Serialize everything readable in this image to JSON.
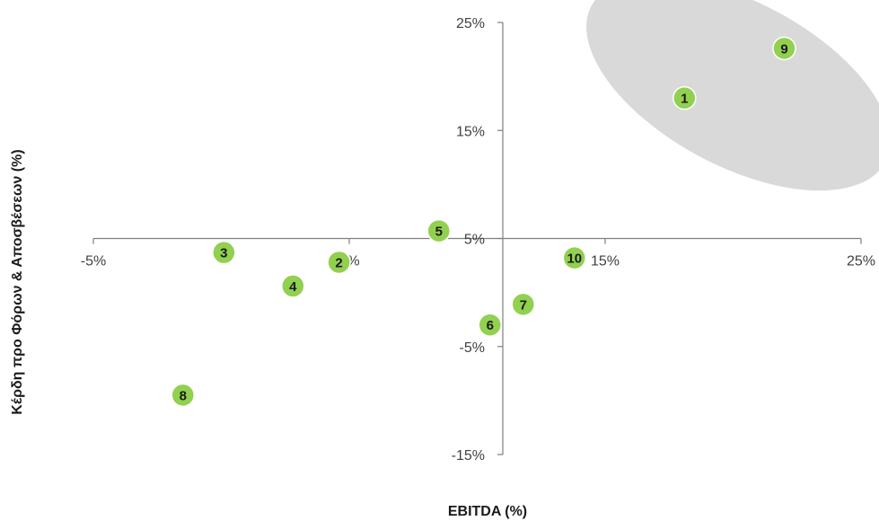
{
  "chart_data": {
    "type": "scatter",
    "title": "",
    "xlabel": "EBITDA (%)",
    "ylabel": "Κέρδη προ Φόρων & Αποσβέσεων (%)",
    "xlim": [
      -5,
      25
    ],
    "ylim": [
      -15,
      25
    ],
    "x_ticks": [
      -5,
      5,
      15,
      25
    ],
    "x_tick_labels": [
      "-5%",
      "5%",
      "15%",
      "25%"
    ],
    "y_ticks": [
      25,
      15,
      5,
      -5,
      -15
    ],
    "y_tick_labels": [
      "25%",
      "15%",
      "5%",
      "-5%",
      "-15%"
    ],
    "axes_cross_at": {
      "x": 11,
      "y": 5
    },
    "grid": false,
    "legend": "none",
    "colors": {
      "point_fill": "#92d050",
      "point_stroke": "#ffffff",
      "axis": "#7f7f7f",
      "highlight_fill": "#d9d9d9"
    },
    "points": [
      {
        "label": "1",
        "x": 18.1,
        "y": 18.0
      },
      {
        "label": "2",
        "x": 4.6,
        "y": 2.8
      },
      {
        "label": "3",
        "x": 0.1,
        "y": 3.7
      },
      {
        "label": "4",
        "x": 2.8,
        "y": 0.6
      },
      {
        "label": "5",
        "x": 8.5,
        "y": 5.7
      },
      {
        "label": "6",
        "x": 10.5,
        "y": -3.0
      },
      {
        "label": "7",
        "x": 11.8,
        "y": -1.1
      },
      {
        "label": "8",
        "x": -1.5,
        "y": -9.5
      },
      {
        "label": "9",
        "x": 22.0,
        "y": 22.6
      },
      {
        "label": "10",
        "x": 13.8,
        "y": 3.2
      }
    ],
    "highlight_ellipse": {
      "cx": 20.2,
      "cy": 19.3,
      "rx": 6.5,
      "ry": 7.6,
      "rotation": 28,
      "contains": [
        "1",
        "9"
      ]
    }
  }
}
